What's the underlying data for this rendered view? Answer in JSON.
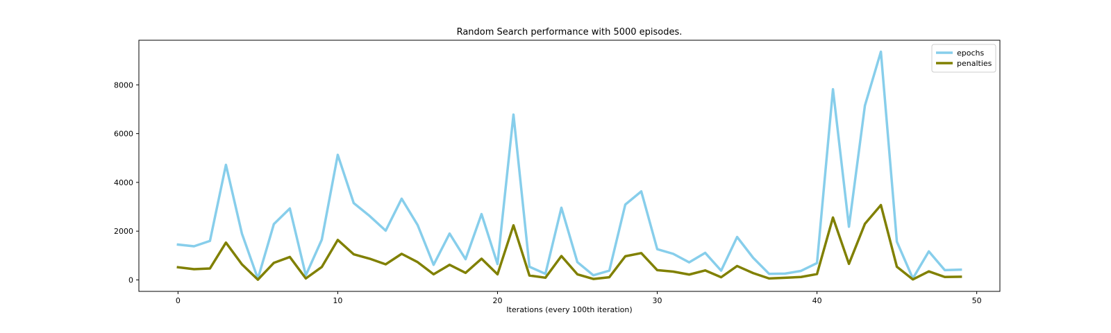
{
  "chart_data": {
    "type": "line",
    "title": "Random Search performance with 5000 episodes.",
    "xlabel": "Iterations (every 100th iteration)",
    "ylabel": "",
    "xlim": [
      -2.45,
      51.45
    ],
    "ylim": [
      -470,
      9830
    ],
    "x_ticks": [
      0,
      10,
      20,
      30,
      40,
      50
    ],
    "y_ticks": [
      0,
      2000,
      4000,
      6000,
      8000
    ],
    "grid": false,
    "legend_position": "top-right",
    "x": [
      0,
      1,
      2,
      3,
      4,
      5,
      6,
      7,
      8,
      9,
      10,
      11,
      12,
      13,
      14,
      15,
      16,
      17,
      18,
      19,
      20,
      21,
      22,
      23,
      24,
      25,
      26,
      27,
      28,
      29,
      30,
      31,
      32,
      33,
      34,
      35,
      36,
      37,
      38,
      39,
      40,
      41,
      42,
      43,
      44,
      45,
      46,
      47,
      48,
      49
    ],
    "series": [
      {
        "name": "epochs",
        "color": "#87ceeb",
        "values": [
          1450,
          1380,
          1600,
          4720,
          1900,
          50,
          2290,
          2930,
          190,
          1650,
          5130,
          3150,
          2620,
          2020,
          3330,
          2250,
          620,
          1900,
          850,
          2700,
          650,
          6780,
          540,
          250,
          2960,
          730,
          190,
          380,
          3090,
          3630,
          1260,
          1070,
          720,
          1110,
          380,
          1760,
          910,
          250,
          260,
          370,
          690,
          7820,
          2180,
          7150,
          9360,
          1570,
          60,
          1170,
          400,
          420
        ],
        "linewidth": 3.5
      },
      {
        "name": "penalties",
        "color": "#808000",
        "values": [
          520,
          440,
          470,
          1530,
          640,
          10,
          700,
          940,
          60,
          530,
          1640,
          1050,
          870,
          640,
          1070,
          730,
          230,
          620,
          290,
          870,
          230,
          2240,
          180,
          90,
          980,
          230,
          40,
          110,
          970,
          1100,
          400,
          340,
          220,
          390,
          110,
          570,
          280,
          60,
          90,
          120,
          240,
          2560,
          660,
          2300,
          3070,
          540,
          20,
          350,
          120,
          130
        ],
        "linewidth": 3.5
      }
    ]
  }
}
